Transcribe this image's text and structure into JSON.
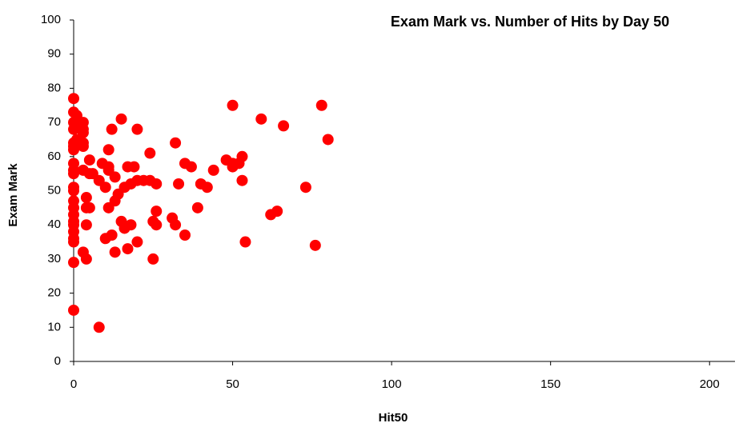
{
  "chart_data": {
    "type": "scatter",
    "title": "Exam Mark vs. Number of Hits by Day 50",
    "xlabel": "Hit50",
    "ylabel": "Exam Mark",
    "color": "#ff0000",
    "x": [
      0,
      0,
      0,
      0,
      0,
      0,
      0,
      0,
      0,
      0,
      0,
      0,
      0,
      0,
      0,
      0,
      0,
      0,
      0,
      0,
      0,
      0,
      1,
      1,
      1,
      3,
      3,
      3,
      3,
      3,
      3,
      4,
      4,
      4,
      3,
      4,
      5,
      5,
      5,
      6,
      8,
      8,
      9,
      10,
      10,
      11,
      11,
      11,
      11,
      12,
      12,
      13,
      13,
      13,
      14,
      15,
      15,
      16,
      16,
      17,
      17,
      18,
      18,
      19,
      20,
      20,
      20,
      22,
      24,
      24,
      25,
      25,
      26,
      26,
      26,
      31,
      32,
      32,
      33,
      35,
      35,
      37,
      39,
      40,
      42,
      44,
      48,
      50,
      50,
      50,
      52,
      53,
      53,
      54,
      59,
      62,
      64,
      66,
      73,
      76,
      78,
      80
    ],
    "values": [
      77,
      73,
      70,
      68,
      64,
      63,
      62,
      58,
      56,
      55,
      51,
      50,
      47,
      45,
      43,
      41,
      40,
      38,
      36,
      35,
      29,
      15,
      72,
      69,
      65,
      70,
      68,
      67,
      64,
      63,
      56,
      48,
      45,
      40,
      32,
      30,
      59,
      55,
      45,
      55,
      53,
      10,
      58,
      51,
      36,
      62,
      57,
      56,
      45,
      68,
      37,
      54,
      47,
      32,
      49,
      71,
      41,
      51,
      39,
      57,
      33,
      52,
      40,
      57,
      68,
      53,
      35,
      53,
      61,
      53,
      41,
      30,
      52,
      44,
      40,
      42,
      64,
      40,
      52,
      58,
      37,
      57,
      45,
      52,
      51,
      56,
      59,
      75,
      58,
      57,
      58,
      60,
      53,
      35,
      71,
      43,
      44,
      69,
      51,
      34,
      75,
      65
    ],
    "xlim": [
      0,
      208
    ],
    "ylim": [
      0,
      100
    ],
    "xticks": [
      0,
      50,
      100,
      150,
      200
    ],
    "yticks": [
      0,
      10,
      20,
      30,
      40,
      50,
      60,
      70,
      80,
      90,
      100
    ]
  }
}
